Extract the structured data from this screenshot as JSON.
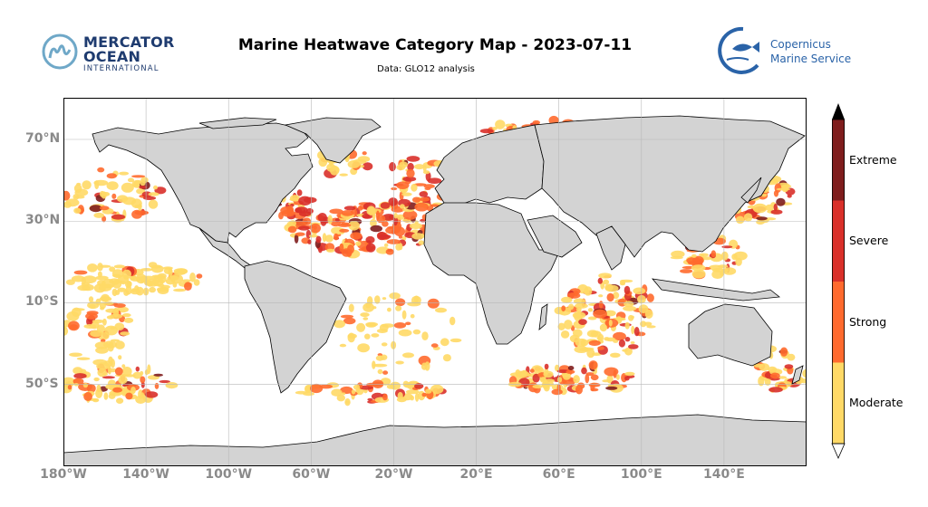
{
  "header": {
    "title": "Marine Heatwave Category Map - 2023-07-11",
    "subtitle": "Data: GLO12 analysis"
  },
  "logos": {
    "left": {
      "line1": "MERCATOR",
      "line2": "OCEAN",
      "line3": "INTERNATIONAL"
    },
    "right": {
      "line1": "Copernicus",
      "line2": "Marine Service"
    }
  },
  "map": {
    "projection": "equirectangular",
    "lon_range": [
      -180,
      180
    ],
    "lat_range": [
      -90,
      90
    ],
    "lat_ticks": [
      "70°N",
      "30°N",
      "10°S",
      "50°S"
    ],
    "lon_ticks": [
      "180°W",
      "140°W",
      "100°W",
      "60°W",
      "20°W",
      "20°E",
      "60°E",
      "100°E",
      "140°E"
    ],
    "land_color": "#d3d3d3",
    "ocean_color": "#ffffff",
    "grid": true
  },
  "colorbar": {
    "categories": [
      "Moderate",
      "Strong",
      "Severe",
      "Extreme"
    ],
    "colors": [
      "#ffd966",
      "#ff6a2e",
      "#d9302a",
      "#7f1d1d"
    ]
  }
}
